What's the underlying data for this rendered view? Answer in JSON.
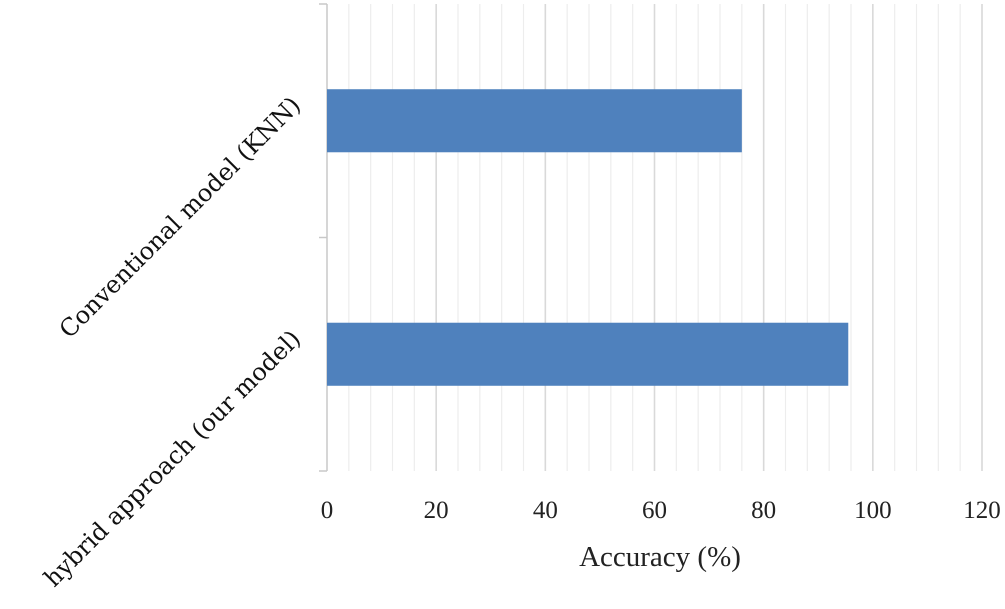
{
  "chart_data": {
    "type": "bar",
    "orientation": "horizontal",
    "title": "",
    "categories": [
      "Conventional model (KNN)",
      "hybrid approach (our model)"
    ],
    "values": [
      76,
      95.5
    ],
    "xlabel": "Accuracy (%)",
    "ylabel": "",
    "xlim": [
      0,
      120
    ],
    "xticks": [
      "0",
      "20",
      "40",
      "60",
      "80",
      "100",
      "120"
    ],
    "major_grid_step": 20,
    "minor_grid_step": 4,
    "grid": true,
    "legend": "none",
    "bar_color": "#4F81BD",
    "major_grid_color": "#d9d9d9",
    "minor_grid_color": "#ededed"
  }
}
